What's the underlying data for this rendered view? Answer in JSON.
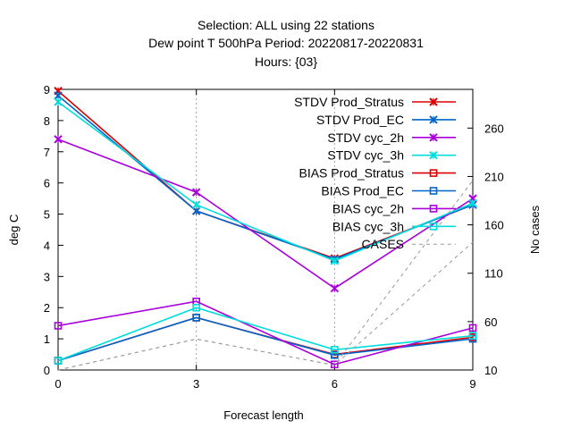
{
  "chart_data": {
    "type": "line",
    "title": [
      "Selection: ALL using    22 stations",
      "Dew point T 500hPa   Period: 20220817-20220831",
      "Hours: {03}"
    ],
    "xlabel": "Forecast length",
    "ylabel": "deg C",
    "y2label": "No cases",
    "x": [
      0,
      3,
      6,
      9
    ],
    "xlim": [
      0,
      9
    ],
    "ylim": [
      0,
      9
    ],
    "y2lim": [
      10,
      300
    ],
    "xticks": [
      "0",
      "3",
      "6",
      "9"
    ],
    "yticks": [
      "0",
      "1",
      "2",
      "3",
      "4",
      "5",
      "6",
      "7",
      "8",
      "9"
    ],
    "y2ticks": [
      "10",
      "60",
      "110",
      "160",
      "210",
      "260"
    ],
    "grid": true,
    "legend_position": "top-right",
    "series": [
      {
        "name": "STDV Prod_Stratus",
        "color": "#dd0000",
        "marker": "x",
        "values": [
          8.95,
          5.1,
          3.58,
          5.3
        ]
      },
      {
        "name": "STDV Prod_EC",
        "color": "#0066cc",
        "marker": "x",
        "values": [
          8.8,
          5.1,
          3.55,
          5.3
        ]
      },
      {
        "name": "STDV cyc_2h",
        "color": "#aa00dd",
        "marker": "x",
        "values": [
          7.4,
          5.7,
          2.62,
          5.5
        ]
      },
      {
        "name": "STDV cyc_3h",
        "color": "#00dddd",
        "marker": "x",
        "values": [
          8.6,
          5.3,
          3.5,
          5.35
        ]
      },
      {
        "name": "BIAS Prod_Stratus",
        "color": "#dd0000",
        "marker": "square",
        "values": [
          0.3,
          1.68,
          0.5,
          1.05
        ]
      },
      {
        "name": "BIAS Prod_EC",
        "color": "#0066cc",
        "marker": "square",
        "values": [
          0.3,
          1.68,
          0.48,
          1.0
        ]
      },
      {
        "name": "BIAS cyc_2h",
        "color": "#aa00dd",
        "marker": "square",
        "values": [
          1.42,
          2.2,
          0.18,
          1.35
        ]
      },
      {
        "name": "BIAS cyc_3h",
        "color": "#00dddd",
        "marker": "square",
        "values": [
          0.3,
          2.0,
          0.65,
          1.1
        ]
      },
      {
        "name": "CASES",
        "color": "#999999",
        "marker": "none",
        "dashed": true,
        "axis": "y2",
        "values": [
          10,
          42,
          15,
          206
        ]
      },
      {
        "name": "CASES",
        "color": "#999999",
        "marker": "none",
        "dashed": true,
        "axis": "y2",
        "values": [
          10,
          42,
          15,
          142
        ]
      }
    ]
  }
}
